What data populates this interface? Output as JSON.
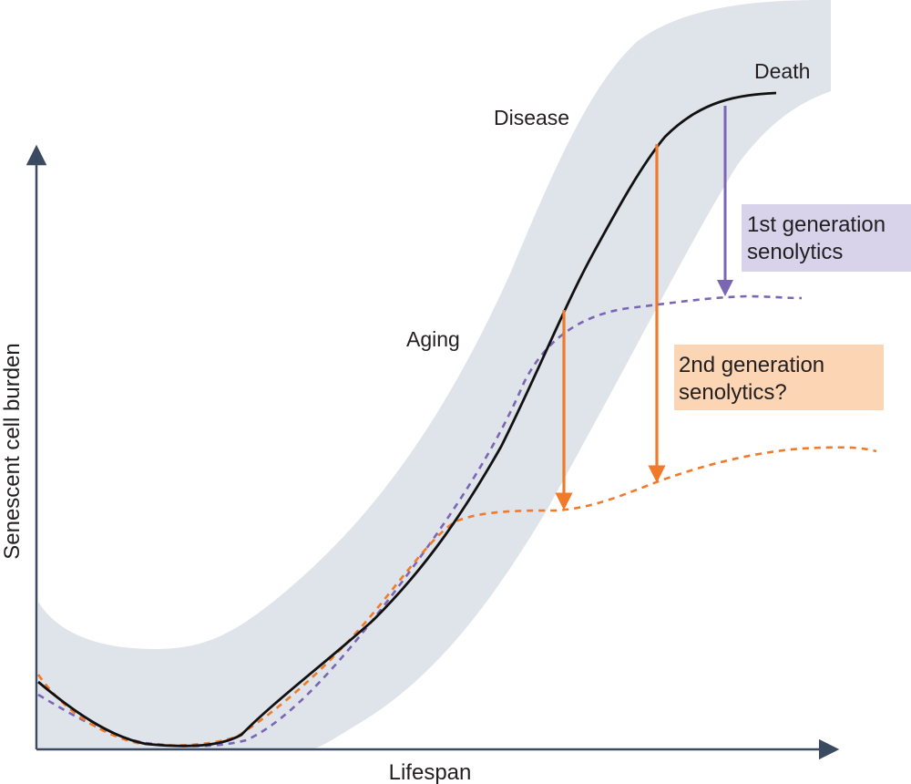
{
  "axes": {
    "x_label": "Lifespan",
    "y_label": "Senescent cell burden"
  },
  "labels": {
    "death": "Death",
    "disease": "Disease",
    "aging": "Aging"
  },
  "annotations": {
    "first_gen_line1": "1st generation",
    "first_gen_line2": "senolytics",
    "second_gen_line1": "2nd generation",
    "second_gen_line2": "senolytics?"
  },
  "colors": {
    "band": "#dfe3ea",
    "main_curve": "#111111",
    "axis": "#3a4a60",
    "first_gen": "#7b66b3",
    "first_gen_box": "#d8d3ea",
    "second_gen": "#f07a2a",
    "second_gen_box": "#fbd5b4"
  }
}
